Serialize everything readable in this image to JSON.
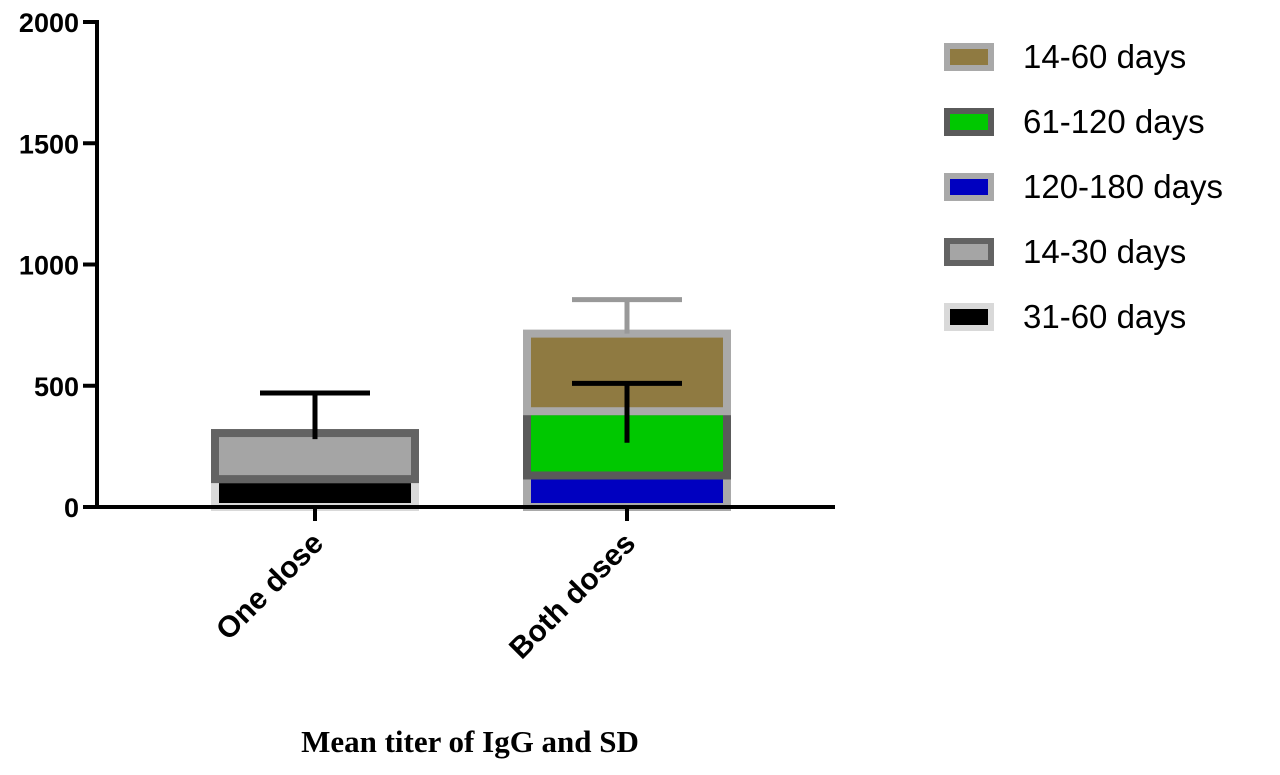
{
  "chart_data": {
    "type": "bar",
    "stacked": true,
    "title": "",
    "xlabel": "Mean titer of IgG and SD",
    "ylabel": "",
    "ylim": [
      0,
      2000
    ],
    "yticks": [
      0,
      500,
      1000,
      1500,
      2000
    ],
    "ytick_labels": [
      "0",
      "500",
      "1000",
      "1500",
      "2000"
    ],
    "categories": [
      "One dose",
      "Both doses"
    ],
    "legend": [
      "14-60 days",
      "61-120 days",
      "120-180 days",
      "14-30 days",
      "31-60 days"
    ],
    "legend_position": "right",
    "series": [
      {
        "name": "31-60 days",
        "category": "One dose",
        "color": "#000000",
        "border": "#d9d9d9",
        "value": 115,
        "sd": 0
      },
      {
        "name": "14-30 days",
        "category": "One dose",
        "color": "#a5a5a5",
        "border": "#636363",
        "value": 190,
        "sd": 170
      },
      {
        "name": "120-180 days",
        "category": "Both doses",
        "color": "#0000c0",
        "border": "#a9a9a9",
        "value": 130,
        "sd": 0
      },
      {
        "name": "61-120 days",
        "category": "Both doses",
        "color": "#00c800",
        "border": "#5a5a5a",
        "value": 265,
        "sd": 120
      },
      {
        "name": "14-60 days",
        "category": "Both doses",
        "color": "#8f7a41",
        "border": "#a9a9a9",
        "value": 320,
        "sd": 140
      }
    ],
    "error_bars": [
      {
        "category": "One dose",
        "value": 280,
        "sd": 190,
        "color": "#000000"
      },
      {
        "category": "Both doses",
        "value": 265,
        "sd": 245,
        "color": "#000000"
      },
      {
        "category": "Both doses",
        "value": 715,
        "sd": 140,
        "color": "#999999"
      }
    ],
    "grid": false
  }
}
